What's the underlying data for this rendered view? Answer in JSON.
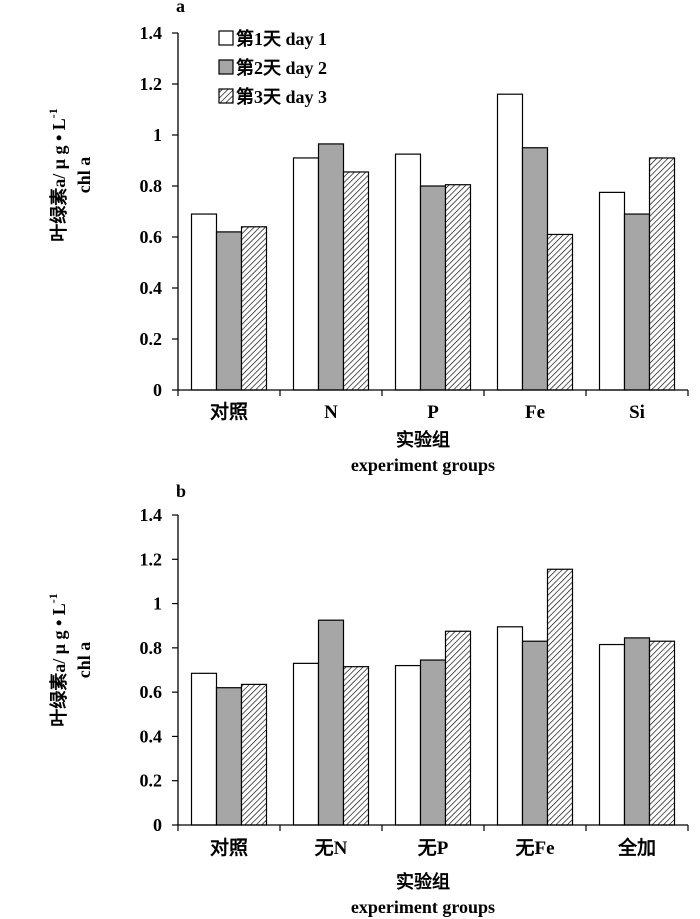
{
  "legend": [
    {
      "label": "第1天  day 1",
      "fill": "white"
    },
    {
      "label": "第2天  day 2",
      "fill": "gray"
    },
    {
      "label": "第3天  day 3",
      "fill": "hatch"
    }
  ],
  "colors": {
    "white": "#ffffff",
    "gray": "#a6a6a6",
    "hatch_line": "#000000",
    "axis": "#000000"
  },
  "chart_data": [
    {
      "type": "bar",
      "panel_label": "a",
      "ylabel_line1": "叶绿素a/ μ g • L",
      "ylabel_sup": "-1",
      "ylabel_line2": "chl a",
      "xlabel_line1": "实验组",
      "xlabel_line2": "experiment groups",
      "ylim": [
        0,
        1.4
      ],
      "yticks": [
        "0",
        "0.2",
        "0.4",
        "0.6",
        "0.8",
        "1",
        "1.2",
        "1.4"
      ],
      "categories": [
        "对照",
        "N",
        "P",
        "Fe",
        "Si"
      ],
      "series": [
        {
          "name": "第1天  day 1",
          "values": [
            0.69,
            0.91,
            0.925,
            1.16,
            0.775
          ]
        },
        {
          "name": "第2天  day 2",
          "values": [
            0.62,
            0.965,
            0.8,
            0.95,
            0.69
          ]
        },
        {
          "name": "第3天  day 3",
          "values": [
            0.64,
            0.855,
            0.805,
            0.61,
            0.91
          ]
        }
      ]
    },
    {
      "type": "bar",
      "panel_label": "b",
      "ylabel_line1": "叶绿素a/ μ g • L",
      "ylabel_sup": "-1",
      "ylabel_line2": "chl a",
      "xlabel_line1": "实验组",
      "xlabel_line2": "experiment groups",
      "ylim": [
        0,
        1.4
      ],
      "yticks": [
        "0",
        "0.2",
        "0.4",
        "0.6",
        "0.8",
        "1",
        "1.2",
        "1.4"
      ],
      "categories": [
        "对照",
        "无N",
        "无P",
        "无Fe",
        "全加"
      ],
      "series": [
        {
          "name": "第1天  day 1",
          "values": [
            0.685,
            0.73,
            0.72,
            0.895,
            0.815
          ]
        },
        {
          "name": "第2天  day 2",
          "values": [
            0.62,
            0.925,
            0.745,
            0.83,
            0.845
          ]
        },
        {
          "name": "第3天  day 3",
          "values": [
            0.635,
            0.715,
            0.875,
            1.155,
            0.83
          ]
        }
      ]
    }
  ]
}
